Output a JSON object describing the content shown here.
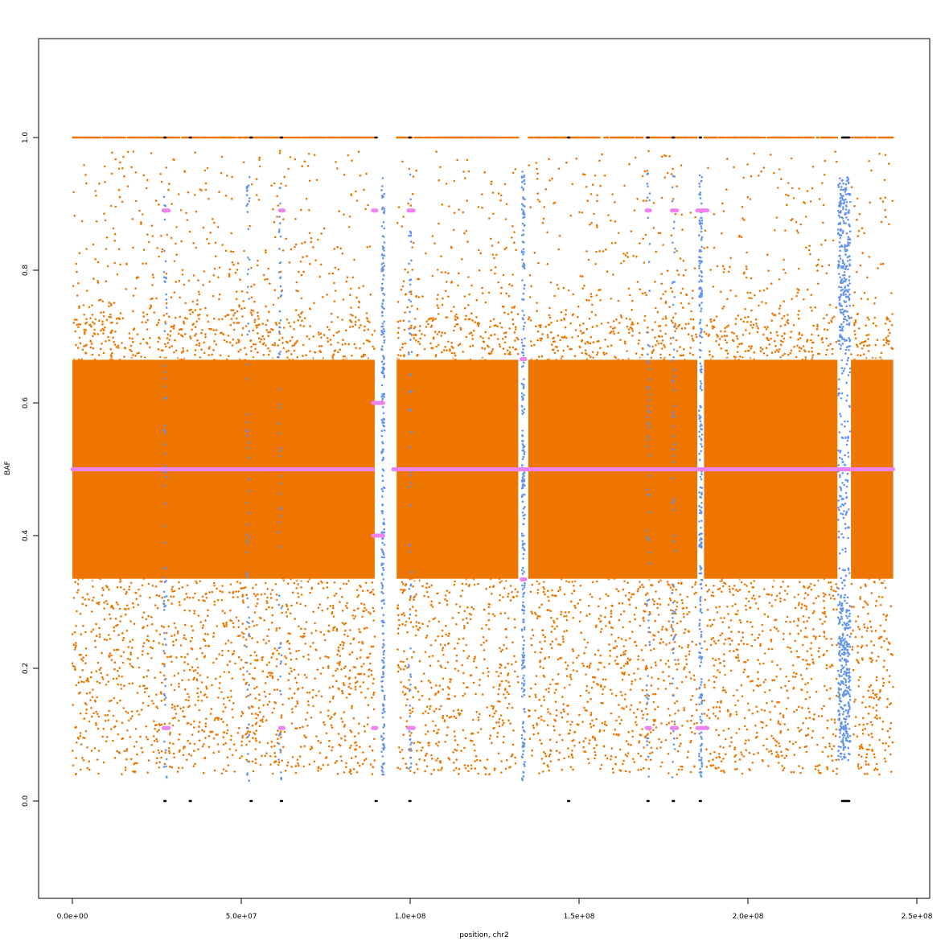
{
  "chart_data": {
    "type": "scatter",
    "title": "",
    "xlabel": "position, chr2",
    "ylabel": "BAF",
    "xlim": [
      -10000000,
      252000000
    ],
    "ylim": [
      -0.15,
      1.15
    ],
    "x_ticks": [
      0,
      50000000,
      100000000,
      150000000,
      200000000,
      250000000
    ],
    "x_tick_labels": [
      "0.0e+00",
      "5.0e+07",
      "1.0e+08",
      "1.5e+08",
      "2.0e+08",
      "2.5e+08"
    ],
    "y_ticks": [
      0.0,
      0.2,
      0.4,
      0.6,
      0.8,
      1.0
    ],
    "y_tick_labels": [
      "0.0",
      "0.2",
      "0.4",
      "0.6",
      "0.8",
      "1.0"
    ],
    "grid": false,
    "legend": "none",
    "chromosome_length": 243000000,
    "colors": {
      "heterozygous": "#EE7600",
      "homozygous": "#000000",
      "normal_baf": "#6495ED",
      "segments": "#EE82EE"
    },
    "series": [
      {
        "values_description_only_for_rendering": "",
        "baf_bands": [
          {
            "from": 0.04,
            "to": 0.335,
            "density": "medium"
          },
          {
            "from": 0.335,
            "to": 0.665,
            "density": "very high"
          },
          {
            "from": 0.665,
            "to": 0.97,
            "density": "low"
          }
        ],
        "baf_stripes": [
          0.333,
          0.5,
          0.667,
          1.0
        ],
        "gaps_x": [
          [
            89500000,
            96000000
          ],
          [
            132000000,
            135000000
          ],
          [
            185000000,
            187000000
          ],
          [
            226500000,
            230500000
          ]
        ]
      }
    ],
    "blue_columns_x": [
      27500000,
      52000000,
      61500000,
      92000000,
      100000000,
      133500000,
      170500000,
      178000000,
      186000000,
      228500000
    ],
    "segments": [
      {
        "x": [
          0,
          89000000
        ],
        "y": 0.5
      },
      {
        "x": [
          95000000,
          243000000
        ],
        "y": 0.5
      },
      {
        "x": [
          27000000,
          28500000
        ],
        "y": 0.89
      },
      {
        "x": [
          61500000,
          62500000
        ],
        "y": 0.89
      },
      {
        "x": [
          89000000,
          90000000
        ],
        "y": 0.89
      },
      {
        "x": [
          99500000,
          101000000
        ],
        "y": 0.89
      },
      {
        "x": [
          170000000,
          171000000
        ],
        "y": 0.89
      },
      {
        "x": [
          177500000,
          179000000
        ],
        "y": 0.89
      },
      {
        "x": [
          185000000,
          188000000
        ],
        "y": 0.89
      },
      {
        "x": [
          89000000,
          92000000
        ],
        "y": 0.6
      },
      {
        "x": [
          89000000,
          92000000
        ],
        "y": 0.4
      },
      {
        "x": [
          133000000,
          134000000
        ],
        "y": 0.666
      },
      {
        "x": [
          133000000,
          134000000
        ],
        "y": 0.334
      },
      {
        "x": [
          27000000,
          28500000
        ],
        "y": 0.11
      },
      {
        "x": [
          61500000,
          62500000
        ],
        "y": 0.11
      },
      {
        "x": [
          89000000,
          90000000
        ],
        "y": 0.11
      },
      {
        "x": [
          99500000,
          101000000
        ],
        "y": 0.11
      },
      {
        "x": [
          170000000,
          171000000
        ],
        "y": 0.11
      },
      {
        "x": [
          177500000,
          179000000
        ],
        "y": 0.11
      },
      {
        "x": [
          185000000,
          188000000
        ],
        "y": 0.11
      }
    ],
    "homozygous_points_x": [
      27500000,
      35000000,
      53000000,
      62000000,
      90000000,
      100000000,
      147000000,
      170500000,
      178000000,
      186000000,
      229000000
    ]
  }
}
